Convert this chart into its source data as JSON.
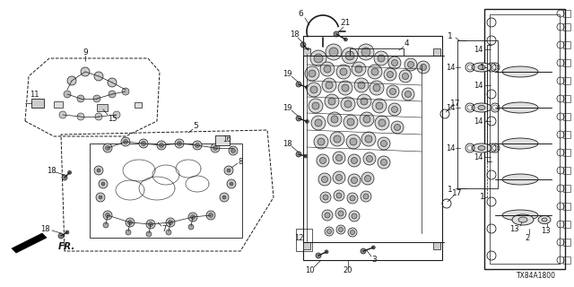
{
  "background_color": "#ffffff",
  "line_color": "#1a1a1a",
  "text_color": "#1a1a1a",
  "fig_width": 6.4,
  "fig_height": 3.2,
  "dpi": 100,
  "diagram_code": "TX84A1800",
  "arrow_label": "FR."
}
